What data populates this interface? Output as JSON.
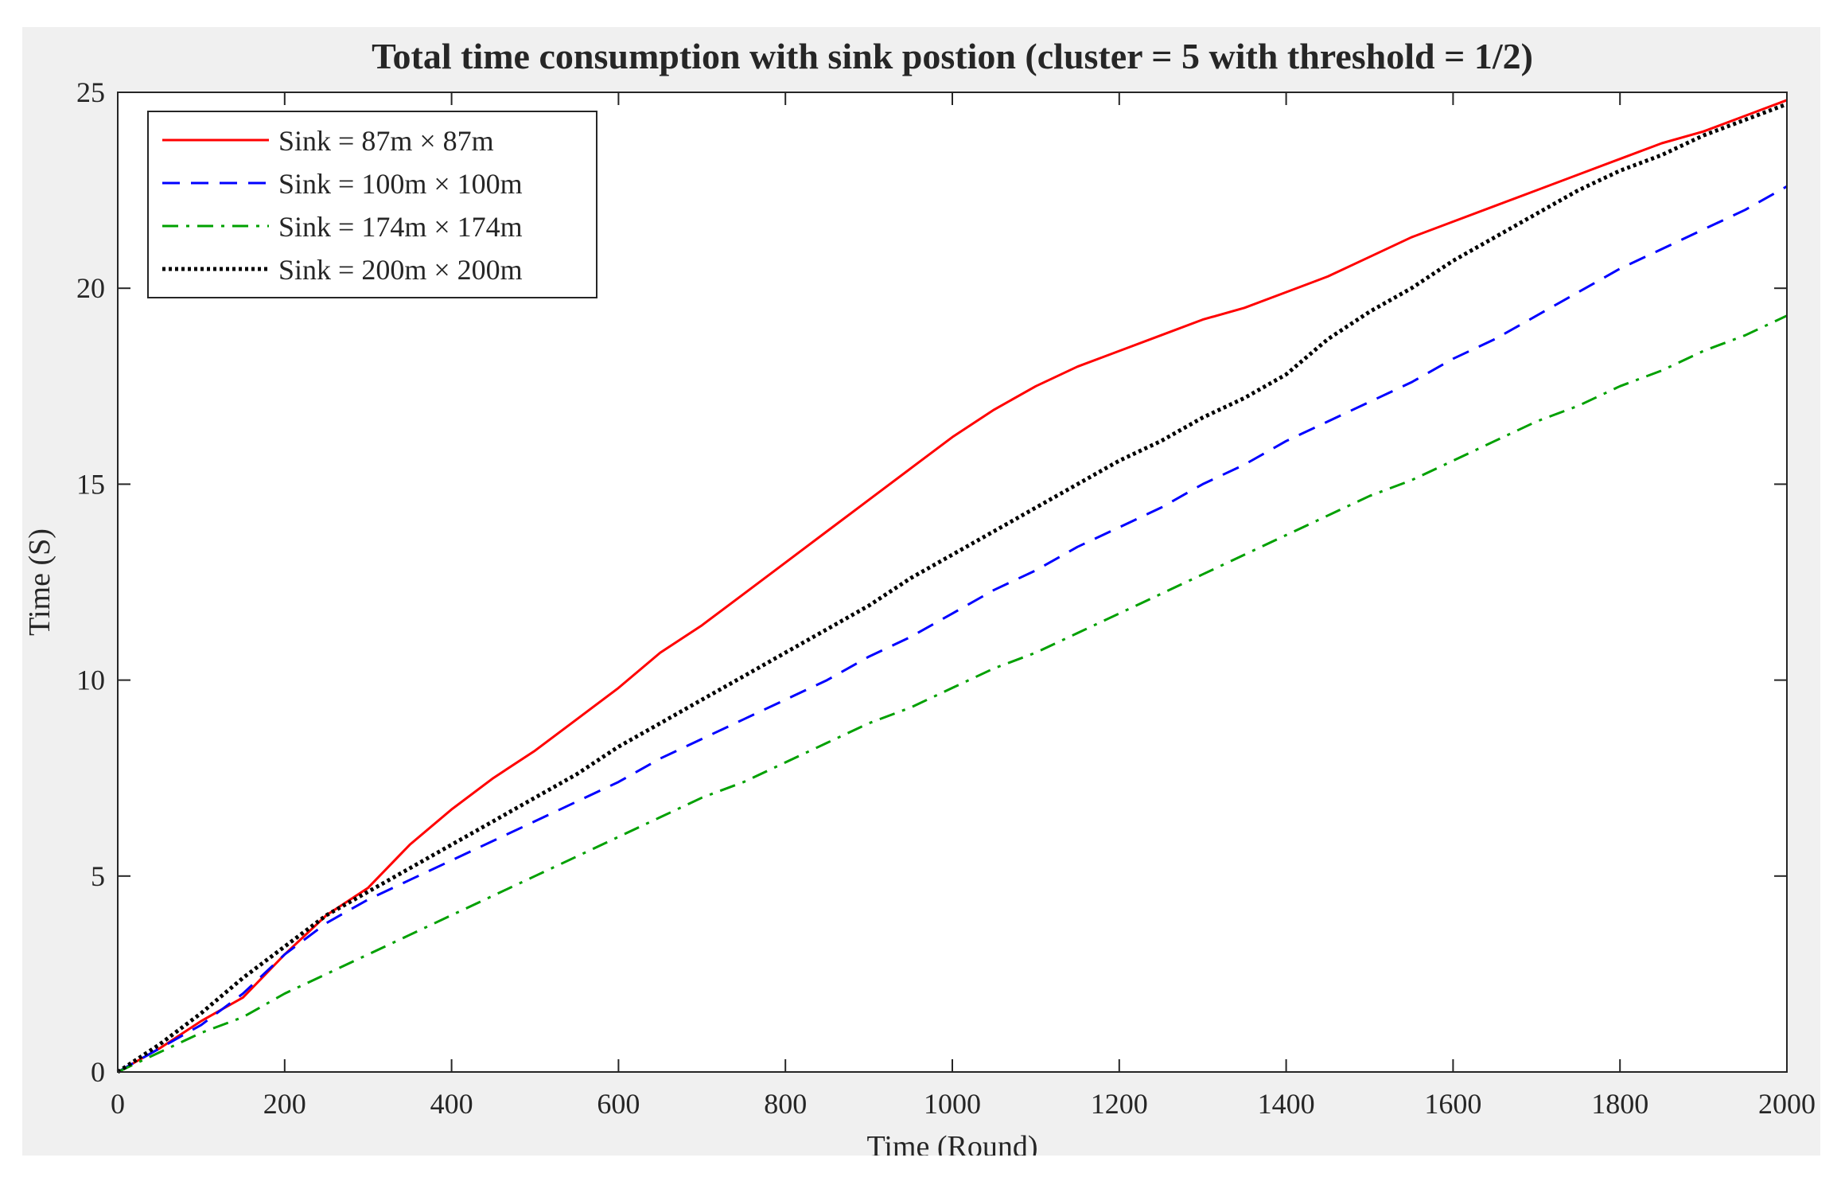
{
  "chart_data": {
    "type": "line",
    "title": "Total time consumption with sink postion (cluster = 5 with threshold = 1/2)",
    "xlabel": "Time (Round)",
    "ylabel": "Time (S)",
    "xlim": [
      0,
      2000
    ],
    "ylim": [
      0,
      25
    ],
    "xticks": [
      0,
      200,
      400,
      600,
      800,
      1000,
      1200,
      1400,
      1600,
      1800,
      2000
    ],
    "yticks": [
      0,
      5,
      10,
      15,
      20,
      25
    ],
    "grid": false,
    "legend_position": "top-left",
    "series": [
      {
        "name": "Sink = 87m × 87m",
        "color": "#ff0000",
        "style": "solid",
        "x": [
          0,
          50,
          100,
          150,
          200,
          250,
          300,
          350,
          400,
          450,
          500,
          550,
          600,
          650,
          700,
          750,
          800,
          850,
          900,
          950,
          1000,
          1050,
          1100,
          1150,
          1200,
          1250,
          1300,
          1350,
          1400,
          1450,
          1500,
          1550,
          1600,
          1650,
          1700,
          1750,
          1800,
          1850,
          1900,
          1950,
          2000
        ],
        "y": [
          0,
          0.6,
          1.3,
          1.9,
          3.0,
          4.0,
          4.7,
          5.8,
          6.7,
          7.5,
          8.2,
          9.0,
          9.8,
          10.7,
          11.4,
          12.2,
          13.0,
          13.8,
          14.6,
          15.4,
          16.2,
          16.9,
          17.5,
          18.0,
          18.4,
          18.8,
          19.2,
          19.5,
          19.9,
          20.3,
          20.8,
          21.3,
          21.7,
          22.1,
          22.5,
          22.9,
          23.3,
          23.7,
          24.0,
          24.4,
          24.8
        ]
      },
      {
        "name": "Sink = 100m × 100m",
        "color": "#0000ff",
        "style": "dashed",
        "x": [
          0,
          50,
          100,
          150,
          200,
          250,
          300,
          350,
          400,
          450,
          500,
          550,
          600,
          650,
          700,
          750,
          800,
          850,
          900,
          950,
          1000,
          1050,
          1100,
          1150,
          1200,
          1250,
          1300,
          1350,
          1400,
          1450,
          1500,
          1550,
          1600,
          1650,
          1700,
          1750,
          1800,
          1850,
          1900,
          1950,
          2000
        ],
        "y": [
          0,
          0.6,
          1.2,
          2.0,
          3.0,
          3.8,
          4.4,
          4.9,
          5.4,
          5.9,
          6.4,
          6.9,
          7.4,
          8.0,
          8.5,
          9.0,
          9.5,
          10.0,
          10.6,
          11.1,
          11.7,
          12.3,
          12.8,
          13.4,
          13.9,
          14.4,
          15.0,
          15.5,
          16.1,
          16.6,
          17.1,
          17.6,
          18.2,
          18.7,
          19.3,
          19.9,
          20.5,
          21.0,
          21.5,
          22.0,
          22.6
        ]
      },
      {
        "name": "Sink = 174m × 174m",
        "color": "#00a000",
        "style": "dash-dot",
        "x": [
          0,
          50,
          100,
          150,
          200,
          250,
          300,
          350,
          400,
          450,
          500,
          550,
          600,
          650,
          700,
          750,
          800,
          850,
          900,
          950,
          1000,
          1050,
          1100,
          1150,
          1200,
          1250,
          1300,
          1350,
          1400,
          1450,
          1500,
          1550,
          1600,
          1650,
          1700,
          1750,
          1800,
          1850,
          1900,
          1950,
          2000
        ],
        "y": [
          0,
          0.5,
          1.0,
          1.4,
          2.0,
          2.5,
          3.0,
          3.5,
          4.0,
          4.5,
          5.0,
          5.5,
          6.0,
          6.5,
          7.0,
          7.4,
          7.9,
          8.4,
          8.9,
          9.3,
          9.8,
          10.3,
          10.7,
          11.2,
          11.7,
          12.2,
          12.7,
          13.2,
          13.7,
          14.2,
          14.7,
          15.1,
          15.6,
          16.1,
          16.6,
          17.0,
          17.5,
          17.9,
          18.4,
          18.8,
          19.3
        ]
      },
      {
        "name": "Sink = 200m × 200m",
        "color": "#000000",
        "style": "dotted",
        "x": [
          0,
          50,
          100,
          150,
          200,
          250,
          300,
          350,
          400,
          450,
          500,
          550,
          600,
          650,
          700,
          750,
          800,
          850,
          900,
          950,
          1000,
          1050,
          1100,
          1150,
          1200,
          1250,
          1300,
          1350,
          1400,
          1450,
          1500,
          1550,
          1600,
          1650,
          1700,
          1750,
          1800,
          1850,
          1900,
          1950,
          2000
        ],
        "y": [
          0,
          0.7,
          1.5,
          2.4,
          3.2,
          4.0,
          4.6,
          5.2,
          5.8,
          6.4,
          7.0,
          7.6,
          8.3,
          8.9,
          9.5,
          10.1,
          10.7,
          11.3,
          11.9,
          12.6,
          13.2,
          13.8,
          14.4,
          15.0,
          15.6,
          16.1,
          16.7,
          17.2,
          17.8,
          18.7,
          19.4,
          20.0,
          20.7,
          21.3,
          21.9,
          22.5,
          23.0,
          23.4,
          23.9,
          24.3,
          24.7
        ]
      }
    ]
  }
}
